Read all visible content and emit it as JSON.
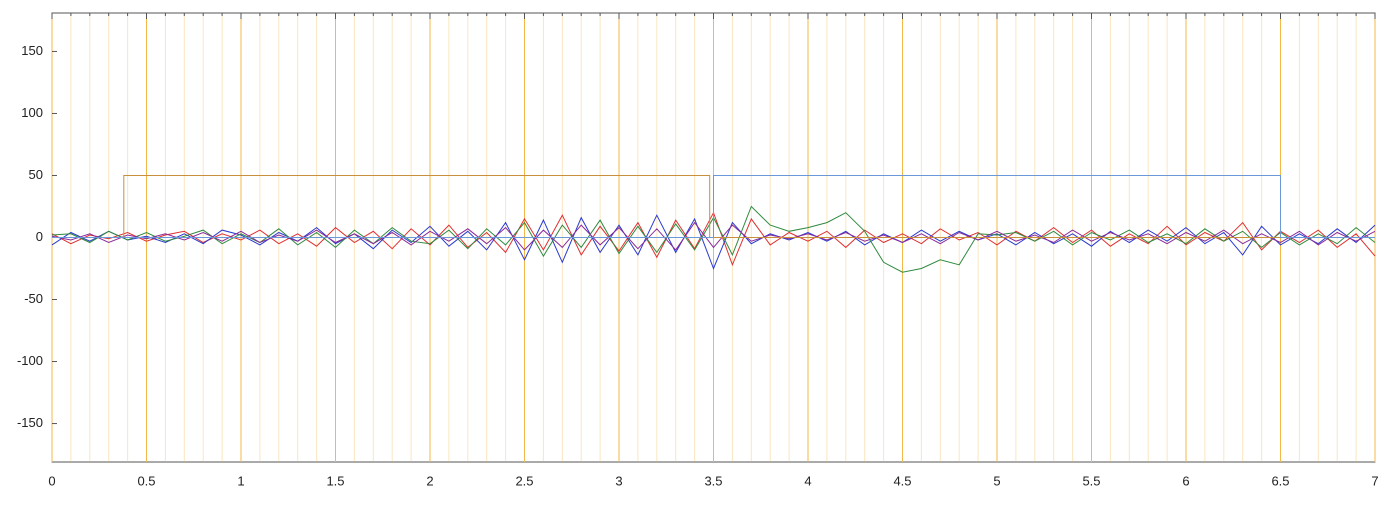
{
  "chart_data": {
    "type": "line",
    "x": [
      0,
      0.1,
      0.2,
      0.3,
      0.4,
      0.5,
      0.6,
      0.7,
      0.8,
      0.9,
      1,
      1.1,
      1.2,
      1.3,
      1.4,
      1.5,
      1.6,
      1.7,
      1.8,
      1.9,
      2,
      2.1,
      2.2,
      2.3,
      2.4,
      2.5,
      2.6,
      2.7,
      2.8,
      2.9,
      3,
      3.1,
      3.2,
      3.3,
      3.4,
      3.5,
      3.6,
      3.7,
      3.8,
      3.9,
      4,
      4.1,
      4.2,
      4.3,
      4.4,
      4.5,
      4.6,
      4.7,
      4.8,
      4.9,
      5,
      5.1,
      5.2,
      5.3,
      5.4,
      5.5,
      5.6,
      5.7,
      5.8,
      5.9,
      6,
      6.1,
      6.2,
      6.3,
      6.4,
      6.5,
      6.6,
      6.7,
      6.8,
      6.9,
      7
    ],
    "series": [
      {
        "color": "#e03030",
        "values": [
          3,
          -5,
          2,
          -1,
          4,
          -3,
          2,
          5,
          -4,
          3,
          -2,
          6,
          -5,
          3,
          -7,
          8,
          -4,
          5,
          -9,
          7,
          -6,
          10,
          -8,
          4,
          -12,
          15,
          -10,
          18,
          -14,
          9,
          -11,
          12,
          -16,
          14,
          -9,
          20,
          -22,
          15,
          -6,
          4,
          -3,
          5,
          -8,
          6,
          -4,
          3,
          -5,
          7,
          -2,
          4,
          -6,
          5,
          -3,
          8,
          -4,
          6,
          -7,
          3,
          -5,
          9,
          -6,
          4,
          -3,
          12,
          -10,
          5,
          -4,
          6,
          -8,
          3,
          -15
        ]
      },
      {
        "color": "#2a3ad0",
        "values": [
          -6,
          4,
          -3,
          5,
          -2,
          1,
          -4,
          3,
          -5,
          6,
          2,
          -6,
          4,
          -3,
          8,
          -5,
          3,
          -9,
          6,
          -4,
          9,
          -7,
          5,
          -10,
          12,
          -18,
          14,
          -20,
          16,
          -12,
          10,
          -14,
          18,
          -12,
          15,
          -25,
          12,
          -5,
          3,
          -2,
          4,
          -3,
          5,
          -6,
          3,
          -4,
          6,
          -3,
          5,
          -2,
          3,
          -6,
          4,
          -5,
          3,
          -7,
          5,
          -4,
          6,
          -3,
          8,
          -5,
          4,
          -14,
          9,
          -6,
          3,
          -5,
          7,
          -4,
          10
        ]
      },
      {
        "color": "#2e8a3e",
        "values": [
          2,
          3,
          -4,
          5,
          -2,
          4,
          -3,
          1,
          6,
          -5,
          3,
          -4,
          7,
          -6,
          4,
          -8,
          6,
          -5,
          8,
          -3,
          -5,
          6,
          -9,
          7,
          -6,
          12,
          -15,
          10,
          -8,
          14,
          -13,
          9,
          -12,
          11,
          -10,
          16,
          -14,
          25,
          10,
          5,
          8,
          12,
          20,
          5,
          -20,
          -28,
          -25,
          -18,
          -22,
          3,
          2,
          4,
          -3,
          5,
          -6,
          4,
          -2,
          6,
          -4,
          3,
          -5,
          7,
          -3,
          5,
          -8,
          4,
          -6,
          3,
          -5,
          8,
          -4
        ]
      },
      {
        "color": "#8a2a9a",
        "values": [
          1,
          -2,
          3,
          -4,
          2,
          -1,
          3,
          -2,
          4,
          -3,
          5,
          -4,
          2,
          -3,
          6,
          -4,
          3,
          -5,
          4,
          -6,
          5,
          -3,
          7,
          -5,
          8,
          -10,
          6,
          -8,
          10,
          -6,
          8,
          -9,
          7,
          -10,
          12,
          -8,
          10,
          -3,
          2,
          -1,
          3,
          -2,
          4,
          -3,
          2,
          -4,
          3,
          -5,
          4,
          -2,
          5,
          -3,
          2,
          -4,
          6,
          -3,
          4,
          -2,
          3,
          -5,
          4,
          -3,
          6,
          -5,
          3,
          -4,
          5,
          -6,
          4,
          -3,
          5
        ]
      },
      {
        "color": "#c8903c",
        "x": [
          0,
          0.38,
          0.38,
          3.48,
          3.48,
          7
        ],
        "values": [
          0,
          0,
          50,
          50,
          0,
          0
        ]
      },
      {
        "color": "#6a98d8",
        "x": [
          0,
          3.5,
          3.5,
          6.5,
          6.5,
          7
        ],
        "values": [
          0,
          0,
          50,
          50,
          0,
          0
        ]
      }
    ],
    "xlim": [
      0,
      7
    ],
    "ylim": [
      -181,
      181
    ],
    "xticks": [
      0,
      0.5,
      1,
      1.5,
      2,
      2.5,
      3,
      3.5,
      4,
      4.5,
      5,
      5.5,
      6,
      6.5,
      7
    ],
    "minor_xticks": [
      0.1,
      0.2,
      0.3,
      0.4,
      0.6,
      0.7,
      0.8,
      0.9,
      1.1,
      1.2,
      1.3,
      1.4,
      1.6,
      1.7,
      1.8,
      1.9,
      2.1,
      2.2,
      2.3,
      2.4,
      2.6,
      2.7,
      2.8,
      2.9,
      3.1,
      3.2,
      3.3,
      3.4,
      3.6,
      3.7,
      3.8,
      3.9,
      4.1,
      4.2,
      4.3,
      4.4,
      4.6,
      4.7,
      4.8,
      4.9,
      5.1,
      5.2,
      5.3,
      5.4,
      5.6,
      5.7,
      5.8,
      5.9,
      6.1,
      6.2,
      6.3,
      6.4,
      6.6,
      6.7,
      6.8,
      6.9
    ],
    "yticks": [
      -150,
      -100,
      -50,
      0,
      50,
      100,
      150
    ],
    "grid": true,
    "grid_color": "#f2b84a"
  }
}
